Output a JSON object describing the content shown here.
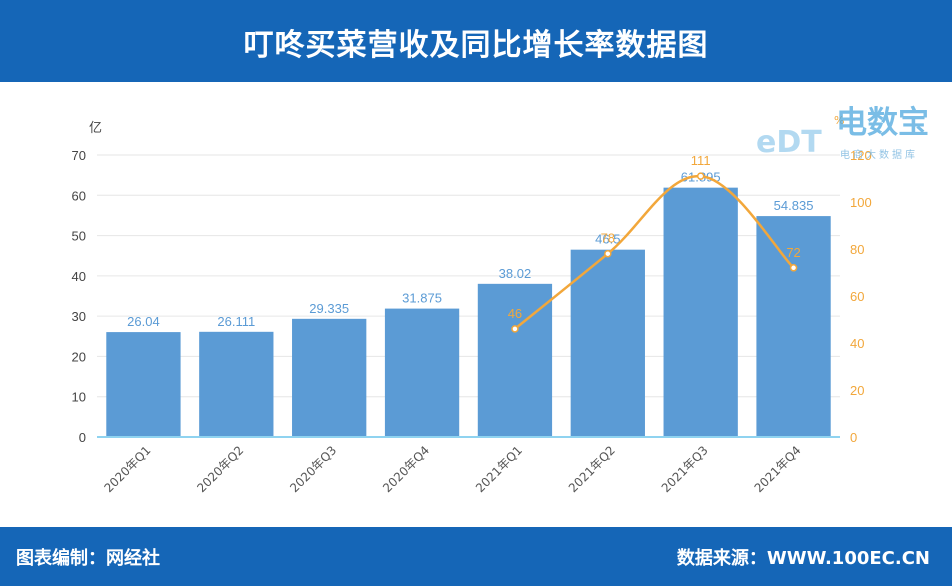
{
  "header": {
    "title": "叮咚买菜营收及同比增长率数据图"
  },
  "footer": {
    "left": "图表编制：网经社",
    "right": "数据来源：WWW.100EC.CN"
  },
  "watermark": {
    "brand": "电数宝",
    "badge": "eDT",
    "tagline": "电商大数据库"
  },
  "colors": {
    "bar": "#5b9bd5",
    "line": "#f2a73b",
    "axis_left_text": "#444444",
    "axis_right_text": "#f2a73b",
    "bar_label": "#5b9bd5",
    "header": "#1566b7"
  },
  "chart_data": {
    "type": "bar",
    "title": "叮咚买菜营收及同比增长率数据图",
    "categories": [
      "2020年Q1",
      "2020年Q2",
      "2020年Q3",
      "2020年Q4",
      "2021年Q1",
      "2021年Q2",
      "2021年Q3",
      "2021年Q4"
    ],
    "series": [
      {
        "values": [
          26.04,
          26.111,
          29.335,
          31.875,
          38.02,
          46.5,
          61.895,
          54.835
        ],
        "labels": [
          "26.04",
          "26.111",
          "29.335",
          "31.875",
          "38.02",
          "46.5",
          "61.895",
          "54.835"
        ],
        "axis": "left",
        "kind": "bar"
      },
      {
        "values": [
          null,
          null,
          null,
          null,
          46,
          78,
          111,
          72
        ],
        "labels": [
          "",
          "",
          "",
          "",
          "46",
          "78",
          "111",
          "72"
        ],
        "axis": "right",
        "kind": "line"
      }
    ],
    "ylabel": "亿",
    "y2label": "%",
    "ylim": [
      0,
      70
    ],
    "yticks": [
      0,
      10,
      20,
      30,
      40,
      50,
      60,
      70
    ],
    "y2lim": [
      0,
      120
    ],
    "y2ticks": [
      0,
      20,
      40,
      60,
      80,
      100,
      120
    ],
    "grid": true,
    "legend": "none"
  }
}
